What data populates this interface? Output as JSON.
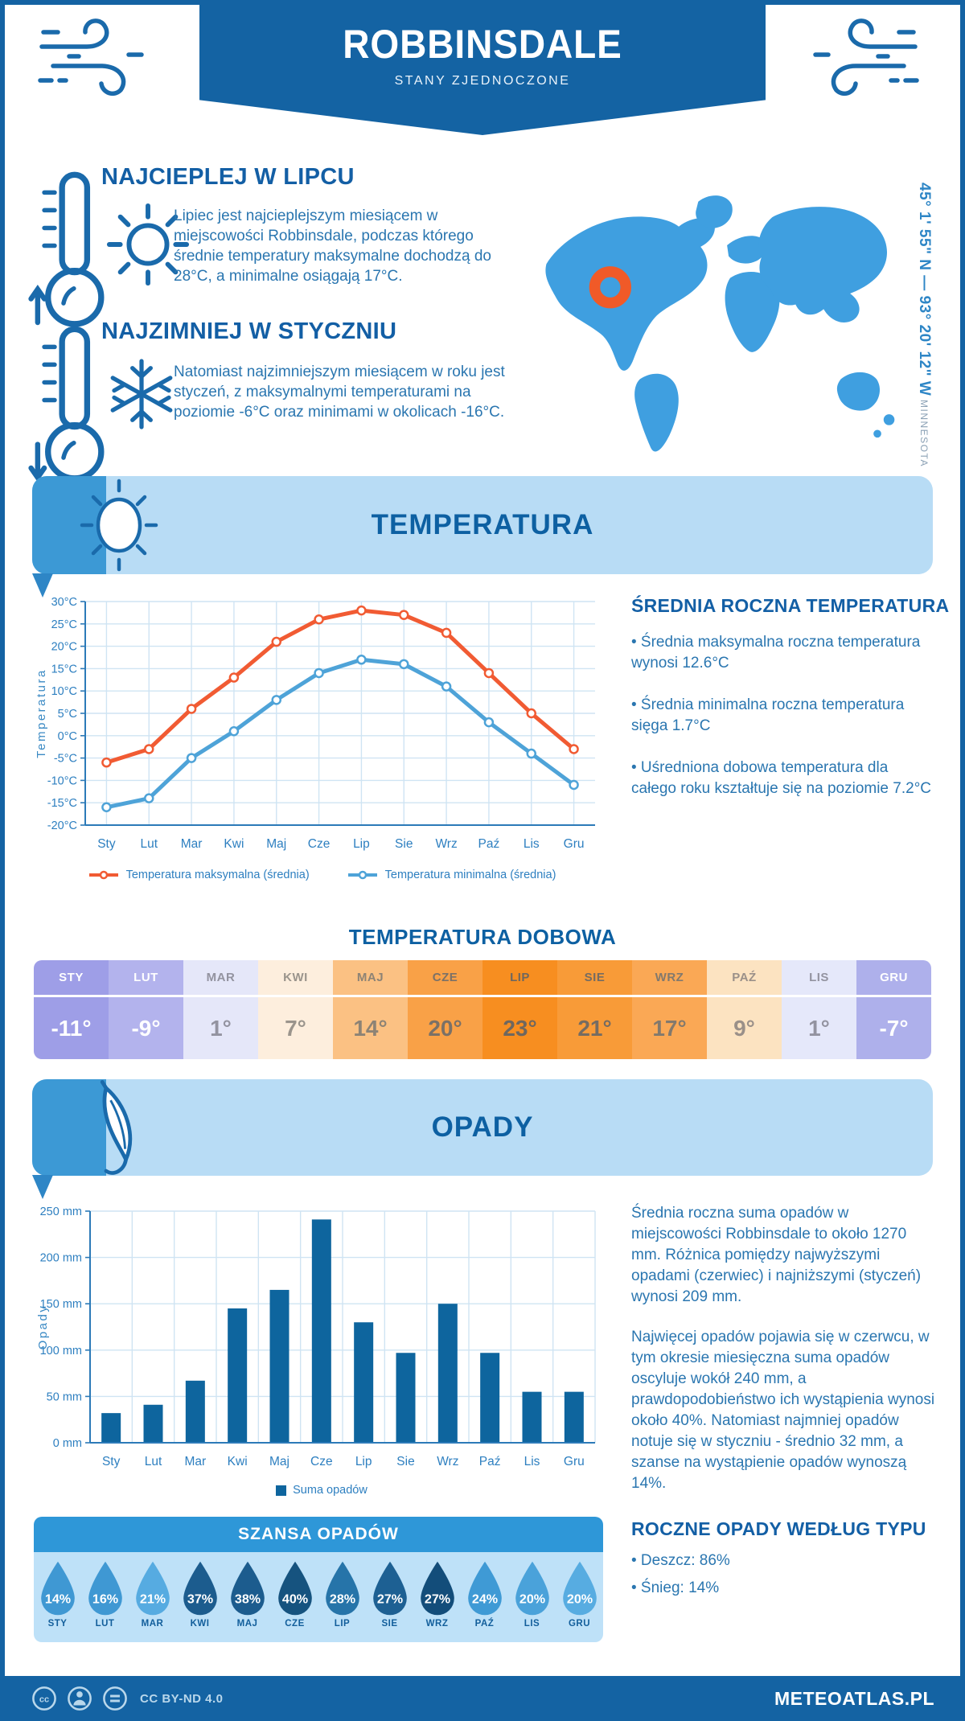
{
  "header": {
    "title": "ROBBINSDALE",
    "subtitle": "STANY ZJEDNOCZONE"
  },
  "highlights": [
    {
      "title": "NAJCIEPLEJ W LIPCU",
      "text": "Lipiec jest najcieplejszym miesiącem w miejscowości Robbinsdale, podczas którego średnie temperatury maksymalne dochodzą do 28°C, a minimalne osiągają 17°C."
    },
    {
      "title": "NAJZIMNIEJ W STYCZNIU",
      "text": "Natomiast najzimniejszym miesiącem w roku jest styczeń, z maksymalnymi temperaturami na poziomie -6°C oraz minimami w okolicach -16°C."
    }
  ],
  "map": {
    "coordinates": "45° 1' 55\" N — 93° 20' 12\" W",
    "region": "MINNESOTA"
  },
  "temperature_section": {
    "title": "TEMPERATURA",
    "annual": {
      "heading": "ŚREDNIA ROCZNA TEMPERATURA",
      "bullets": [
        "• Średnia maksymalna roczna temperatura wynosi 12.6°C",
        "• Średnia minimalna roczna temperatura sięga 1.7°C",
        "• Uśredniona dobowa temperatura dla całego roku kształtuje się na poziomie 7.2°C"
      ]
    },
    "daily": {
      "heading": "TEMPERATURA DOBOWA",
      "cells": [
        {
          "month": "STY",
          "value": "-11°",
          "bg": "#9e9ee7",
          "fg": "#ffffff"
        },
        {
          "month": "LUT",
          "value": "-9°",
          "bg": "#b3b3ed",
          "fg": "#ffffff"
        },
        {
          "month": "MAR",
          "value": "1°",
          "bg": "#e5e7f9",
          "fg": "#9393a0"
        },
        {
          "month": "KWI",
          "value": "7°",
          "bg": "#fdeedd",
          "fg": "#9a948c"
        },
        {
          "month": "MAJ",
          "value": "14°",
          "bg": "#fbc183",
          "fg": "#8d8375"
        },
        {
          "month": "CZE",
          "value": "20°",
          "bg": "#f9a147",
          "fg": "#7b7167"
        },
        {
          "month": "LIP",
          "value": "23°",
          "bg": "#f78e20",
          "fg": "#6e675f"
        },
        {
          "month": "SIE",
          "value": "21°",
          "bg": "#f89b38",
          "fg": "#756c62"
        },
        {
          "month": "WRZ",
          "value": "17°",
          "bg": "#faa855",
          "fg": "#82796d"
        },
        {
          "month": "PAŹ",
          "value": "9°",
          "bg": "#fce3c1",
          "fg": "#9a9089"
        },
        {
          "month": "LIS",
          "value": "1°",
          "bg": "#e5e8fa",
          "fg": "#9393a0"
        },
        {
          "month": "GRU",
          "value": "-7°",
          "bg": "#aeb0eb",
          "fg": "#ffffff"
        }
      ]
    }
  },
  "precipitation_section": {
    "title": "OPADY",
    "paragraphs": [
      "Średnia roczna suma opadów w miejscowości Robbinsdale to około 1270 mm. Różnica pomiędzy najwyższymi opadami (czerwiec) i najniższymi (styczeń) wynosi 209 mm.",
      "Najwięcej opadów pojawia się w czerwcu, w tym okresie miesięczna suma opadów oscyluje wokół 240 mm, a prawdopodobieństwo ich wystąpienia wynosi około 40%. Natomiast najmniej opadów notuje się w styczniu - średnio 32 mm, a szanse na wystąpienie opadów wynoszą 14%."
    ],
    "types": {
      "heading": "ROCZNE OPADY WEDŁUG TYPU",
      "bullets": [
        "• Deszcz: 86%",
        "• Śnieg: 14%"
      ]
    },
    "chance": {
      "title": "SZANSA OPADÓW",
      "items": [
        {
          "month": "STY",
          "value": "14%",
          "color": "#3f98d3"
        },
        {
          "month": "LUT",
          "value": "16%",
          "color": "#3f98d3"
        },
        {
          "month": "MAR",
          "value": "21%",
          "color": "#56abe1"
        },
        {
          "month": "KWI",
          "value": "37%",
          "color": "#1c5c8e"
        },
        {
          "month": "MAJ",
          "value": "38%",
          "color": "#1c5c8e"
        },
        {
          "month": "CZE",
          "value": "40%",
          "color": "#16537f"
        },
        {
          "month": "LIP",
          "value": "28%",
          "color": "#2674a9"
        },
        {
          "month": "SIE",
          "value": "27%",
          "color": "#1d6093"
        },
        {
          "month": "WRZ",
          "value": "27%",
          "color": "#134d7a"
        },
        {
          "month": "PAŹ",
          "value": "24%",
          "color": "#3f9ad5"
        },
        {
          "month": "LIS",
          "value": "20%",
          "color": "#4aa2da"
        },
        {
          "month": "GRU",
          "value": "20%",
          "color": "#57ace1"
        }
      ]
    }
  },
  "footer": {
    "license": "CC BY-ND 4.0",
    "site": "METEOATLAS.PL"
  },
  "chart_data": [
    {
      "type": "line",
      "title": "Temperatura",
      "categories": [
        "Sty",
        "Lut",
        "Mar",
        "Kwi",
        "Maj",
        "Cze",
        "Lip",
        "Sie",
        "Wrz",
        "Paź",
        "Lis",
        "Gru"
      ],
      "series": [
        {
          "name": "Temperatura maksymalna (średnia)",
          "color": "#f15b33",
          "values": [
            -6,
            -3,
            6,
            13,
            21,
            26,
            28,
            27,
            23,
            14,
            5,
            -3
          ]
        },
        {
          "name": "Temperatura minimalna (średnia)",
          "color": "#4ea3d8",
          "values": [
            -16,
            -14,
            -5,
            1,
            8,
            14,
            17,
            16,
            11,
            3,
            -4,
            -11
          ]
        }
      ],
      "xlabel": "",
      "ylabel": "Temperatura",
      "ylim": [
        -20,
        30
      ],
      "ytick_step": 5,
      "ytick_suffix": "°C",
      "grid": true,
      "legend_position": "bottom"
    },
    {
      "type": "bar",
      "title": "Opady",
      "categories": [
        "Sty",
        "Lut",
        "Mar",
        "Kwi",
        "Maj",
        "Cze",
        "Lip",
        "Sie",
        "Wrz",
        "Paź",
        "Lis",
        "Gru"
      ],
      "values": [
        32,
        41,
        67,
        145,
        165,
        241,
        130,
        97,
        150,
        97,
        55,
        55
      ],
      "series_name": "Suma opadów",
      "color": "#0e659e",
      "xlabel": "",
      "ylabel": "Opady",
      "ylim": [
        0,
        250
      ],
      "ytick_step": 50,
      "ytick_suffix": " mm",
      "grid": true,
      "legend_position": "bottom"
    }
  ]
}
